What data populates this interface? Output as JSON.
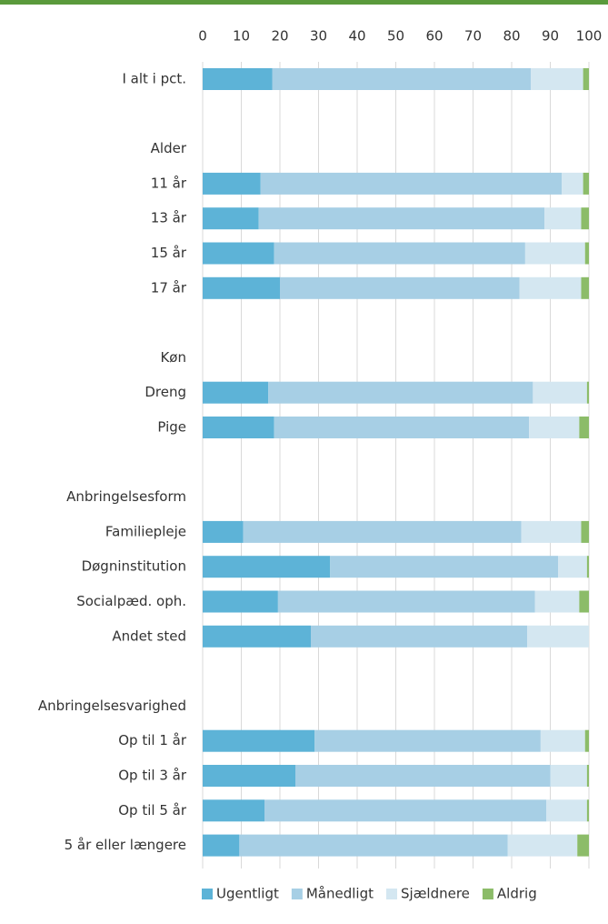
{
  "chart_data": {
    "type": "stacked-bar-horizontal",
    "categories": [
      "I alt i pct.",
      null,
      "Alder",
      "11 år",
      "13 år",
      "15 år",
      "17 år",
      null,
      "Køn",
      "Dreng",
      "Pige",
      null,
      "Anbringelsesform",
      "Familiepleje",
      "Døgninstitution",
      "Socialpæd. oph.",
      "Andet sted",
      null,
      "Anbringelsesvarighed",
      "Op til 1 år",
      "Op til 3 år",
      "Op til 5 år",
      "5 år eller længere"
    ],
    "series": [
      {
        "name": "Ugentligt",
        "color": "#5db3d7",
        "values": [
          18,
          null,
          null,
          15,
          14.5,
          18.5,
          20,
          null,
          null,
          17,
          18.5,
          null,
          null,
          10.5,
          33,
          19.5,
          28,
          null,
          null,
          29,
          24,
          16,
          9.5
        ]
      },
      {
        "name": "Månedligt",
        "color": "#a7cfe5",
        "values": [
          67,
          null,
          null,
          78,
          74,
          65,
          62,
          null,
          null,
          68.5,
          66,
          null,
          null,
          72,
          59,
          66.5,
          56,
          null,
          null,
          58.5,
          66,
          73,
          69.5
        ]
      },
      {
        "name": "Sjældnere",
        "color": "#d4e7f1",
        "values": [
          13.5,
          null,
          null,
          5.5,
          9.5,
          15.5,
          16,
          null,
          null,
          14,
          13,
          null,
          null,
          15.5,
          7.5,
          11.5,
          16,
          null,
          null,
          11.5,
          9.5,
          10.5,
          18
        ]
      },
      {
        "name": "Aldrig",
        "color": "#8cbc69",
        "values": [
          1.5,
          null,
          null,
          1.5,
          2,
          1,
          2,
          null,
          null,
          0.5,
          2.5,
          null,
          null,
          2,
          0.5,
          2.5,
          0,
          null,
          null,
          1,
          0.5,
          0.5,
          3
        ]
      }
    ],
    "xlim": [
      0,
      100
    ],
    "xticks": [
      0,
      10,
      20,
      30,
      40,
      50,
      60,
      70,
      80,
      90,
      100
    ],
    "grid": true,
    "legend": "bottom"
  }
}
